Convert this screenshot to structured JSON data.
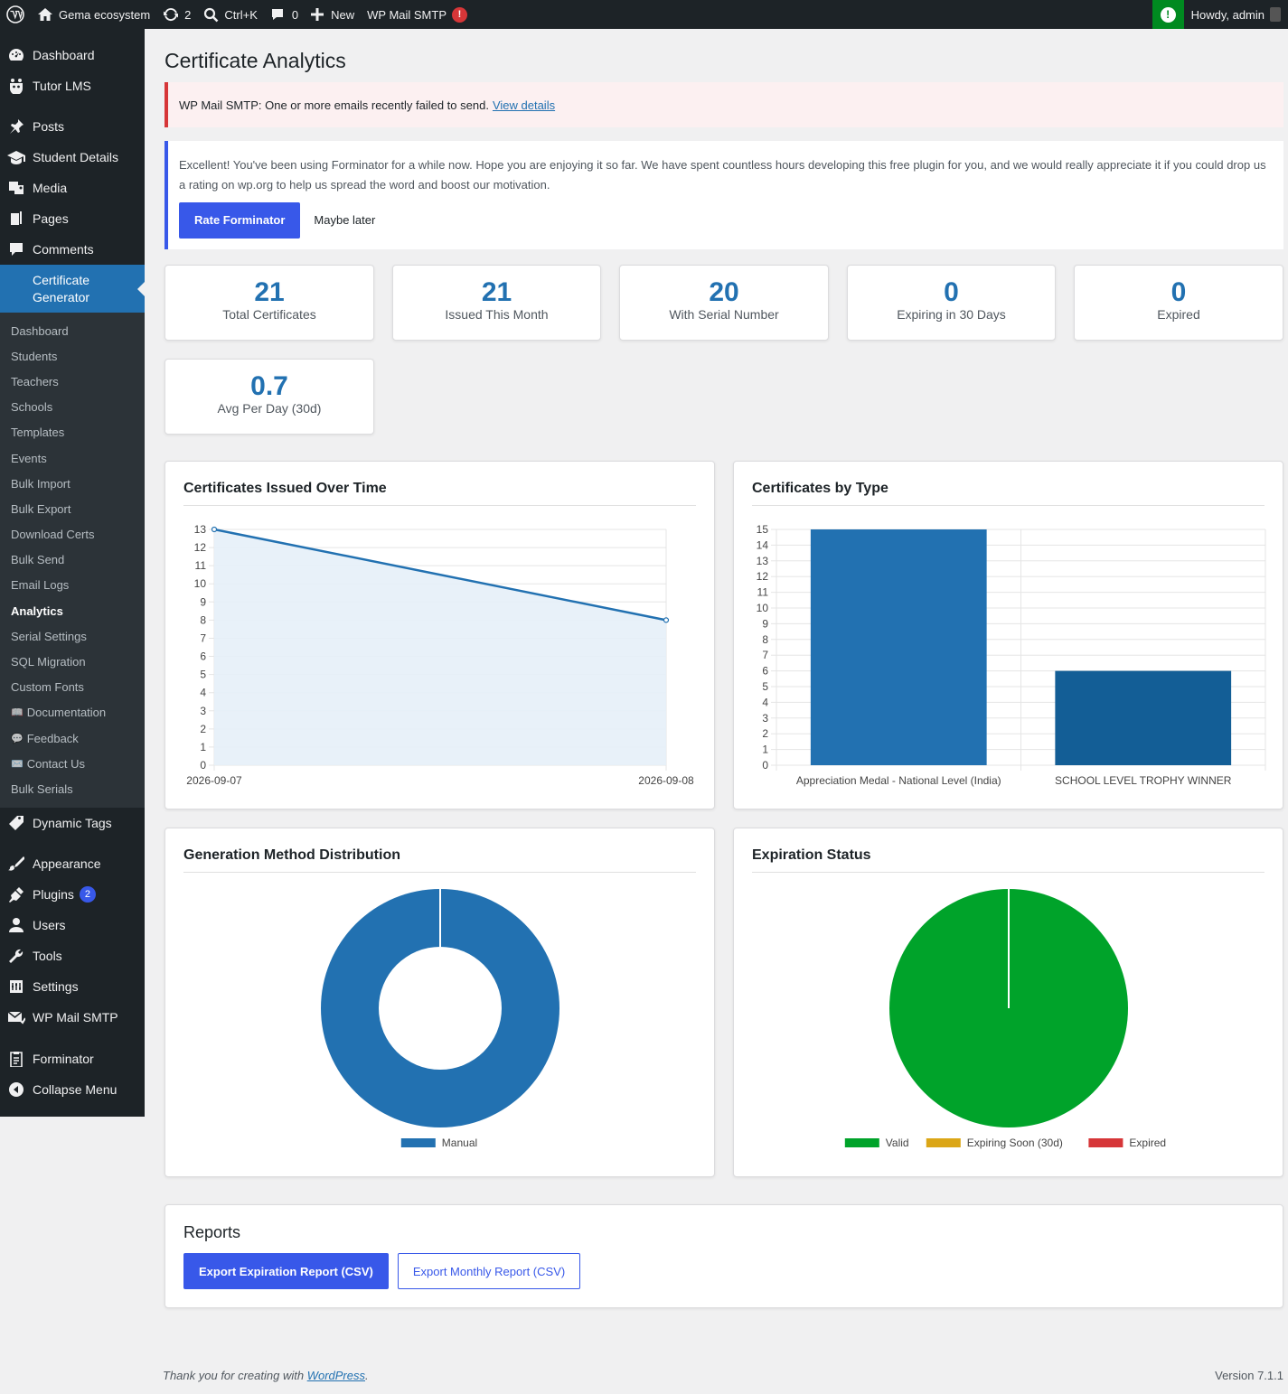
{
  "adminbar": {
    "site_name": "Gema ecosystem",
    "updates_count": "2",
    "search_shortcut": "Ctrl+K",
    "comments_count": "0",
    "new_label": "New",
    "smtp_label": "WP Mail SMTP",
    "smtp_alert": "!",
    "notice_icon": "!",
    "howdy": "Howdy, admin"
  },
  "sidebar": {
    "top_items": [
      {
        "label": "Dashboard",
        "icon": "dashboard-icon"
      },
      {
        "label": "Tutor LMS",
        "icon": "tutor-icon"
      },
      {
        "label": "Posts",
        "icon": "pin-icon"
      },
      {
        "label": "Student Details",
        "icon": "graduation-cap-icon"
      },
      {
        "label": "Media",
        "icon": "media-icon"
      },
      {
        "label": "Pages",
        "icon": "pages-icon"
      },
      {
        "label": "Comments",
        "icon": "comment-icon"
      }
    ],
    "current": {
      "line1": "Certificate",
      "line2": "Generator"
    },
    "submenu": [
      "Dashboard",
      "Students",
      "Teachers",
      "Schools",
      "Templates",
      "Events",
      "Bulk Import",
      "Bulk Export",
      "Download Certs",
      "Bulk Send",
      "Email Logs",
      "Analytics",
      "Serial Settings",
      "SQL Migration",
      "Custom Fonts",
      "Documentation",
      "Feedback",
      "Contact Us",
      "Bulk Serials"
    ],
    "sub_emoji": {
      "documentation": "📖",
      "feedback": "💬",
      "contact": "✉️"
    },
    "bottom_items": [
      {
        "label": "Dynamic Tags",
        "icon": "tag-icon"
      },
      {
        "label": "Appearance",
        "icon": "brush-icon"
      },
      {
        "label": "Plugins",
        "icon": "plugin-icon",
        "badge": "2"
      },
      {
        "label": "Users",
        "icon": "user-icon"
      },
      {
        "label": "Tools",
        "icon": "wrench-icon"
      },
      {
        "label": "Settings",
        "icon": "settings-icon"
      },
      {
        "label": "WP Mail SMTP",
        "icon": "mail-icon"
      },
      {
        "label": "Forminator",
        "icon": "clipboard-icon"
      },
      {
        "label": "Collapse Menu",
        "icon": "collapse-icon"
      }
    ]
  },
  "page": {
    "title": "Certificate Analytics",
    "error_notice": {
      "text": "WP Mail SMTP: One or more emails recently failed to send.",
      "link": "View details"
    },
    "info_notice": {
      "text": "Excellent! You've been using Forminator for a while now. Hope you are enjoying it so far. We have spent countless hours developing this free plugin for you, and we would really appreciate it if you could drop us a rating on wp.org to help us spread the word and boost our motivation.",
      "primary": "Rate Forminator",
      "secondary": "Maybe later"
    }
  },
  "stats": [
    {
      "value": "21",
      "label": "Total Certificates"
    },
    {
      "value": "21",
      "label": "Issued This Month"
    },
    {
      "value": "20",
      "label": "With Serial Number"
    },
    {
      "value": "0",
      "label": "Expiring in 30 Days"
    },
    {
      "value": "0",
      "label": "Expired"
    },
    {
      "value": "0.7",
      "label": "Avg Per Day (30d)"
    }
  ],
  "panels": {
    "over_time": "Certificates Issued Over Time",
    "by_type": "Certificates by Type",
    "method": "Generation Method Distribution",
    "expiration": "Expiration Status"
  },
  "chart_data": [
    {
      "type": "area",
      "title": "Certificates Issued Over Time",
      "x": [
        "2026-09-07",
        "2026-09-08"
      ],
      "values": [
        13,
        8
      ],
      "ylim": [
        0,
        13
      ],
      "yticks": [
        0,
        1,
        2,
        3,
        4,
        5,
        6,
        7,
        8,
        9,
        10,
        11,
        12,
        13
      ],
      "color": "#2271b1",
      "fill": "#e6eff8",
      "grid": true
    },
    {
      "type": "bar",
      "title": "Certificates by Type",
      "categories": [
        "Appreciation Medal - National Level (India)",
        "SCHOOL LEVEL TROPHY WINNER"
      ],
      "values": [
        15,
        6
      ],
      "ylim": [
        0,
        15
      ],
      "yticks": [
        0,
        1,
        2,
        3,
        4,
        5,
        6,
        7,
        8,
        9,
        10,
        11,
        12,
        13,
        14,
        15
      ],
      "colors": [
        "#2271b1",
        "#135e96"
      ],
      "grid": true
    },
    {
      "type": "pie",
      "subtype": "doughnut",
      "title": "Generation Method Distribution",
      "labels": [
        "Manual"
      ],
      "values": [
        21
      ],
      "colors": [
        "#2271b1"
      ],
      "legend": "bottom"
    },
    {
      "type": "pie",
      "title": "Expiration Status",
      "labels": [
        "Valid",
        "Expiring Soon (30d)",
        "Expired"
      ],
      "values": [
        21,
        0,
        0
      ],
      "colors": [
        "#00a32a",
        "#dba617",
        "#d63638"
      ],
      "legend": "bottom"
    }
  ],
  "reports": {
    "title": "Reports",
    "btn_expiration": "Export Expiration Report (CSV)",
    "btn_monthly": "Export Monthly Report (CSV)"
  },
  "footer": {
    "thanks_prefix": "Thank you for creating with ",
    "wp_link": "WordPress",
    "suffix": ".",
    "version": "Version 7.1.1"
  }
}
